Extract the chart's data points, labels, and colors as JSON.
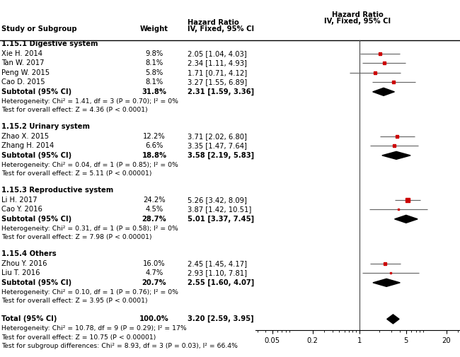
{
  "sections": [
    {
      "header": "1.15.1 Digestive system",
      "studies": [
        {
          "name": "Xie H. 2014",
          "weight": "9.8%",
          "hr": 2.05,
          "lo": 1.04,
          "hi": 4.03,
          "label": "2.05 [1.04, 4.03]"
        },
        {
          "name": "Tan W. 2017",
          "weight": "8.1%",
          "hr": 2.34,
          "lo": 1.11,
          "hi": 4.93,
          "label": "2.34 [1.11, 4.93]"
        },
        {
          "name": "Peng W. 2015",
          "weight": "5.8%",
          "hr": 1.71,
          "lo": 0.71,
          "hi": 4.12,
          "label": "1.71 [0.71, 4.12]"
        },
        {
          "name": "Cao D. 2015",
          "weight": "8.1%",
          "hr": 3.27,
          "lo": 1.55,
          "hi": 6.89,
          "label": "3.27 [1.55, 6.89]"
        }
      ],
      "subtotal": {
        "weight": "31.8%",
        "hr": 2.31,
        "lo": 1.59,
        "hi": 3.36,
        "label": "2.31 [1.59, 3.36]"
      },
      "het_text": "Heterogeneity: Chi² = 1.41, df = 3 (P = 0.70); I² = 0%",
      "test_text": "Test for overall effect: Z = 4.36 (P < 0.0001)"
    },
    {
      "header": "1.15.2 Urinary system",
      "studies": [
        {
          "name": "Zhao X. 2015",
          "weight": "12.2%",
          "hr": 3.71,
          "lo": 2.02,
          "hi": 6.8,
          "label": "3.71 [2.02, 6.80]"
        },
        {
          "name": "Zhang H. 2014",
          "weight": "6.6%",
          "hr": 3.35,
          "lo": 1.47,
          "hi": 7.64,
          "label": "3.35 [1.47, 7.64]"
        }
      ],
      "subtotal": {
        "weight": "18.8%",
        "hr": 3.58,
        "lo": 2.19,
        "hi": 5.83,
        "label": "3.58 [2.19, 5.83]"
      },
      "het_text": "Heterogeneity: Chi² = 0.04, df = 1 (P = 0.85); I² = 0%",
      "test_text": "Test for overall effect: Z = 5.11 (P < 0.00001)"
    },
    {
      "header": "1.15.3 Reproductive system",
      "studies": [
        {
          "name": "Li H. 2017",
          "weight": "24.2%",
          "hr": 5.26,
          "lo": 3.42,
          "hi": 8.09,
          "label": "5.26 [3.42, 8.09]"
        },
        {
          "name": "Cao Y. 2016",
          "weight": "4.5%",
          "hr": 3.87,
          "lo": 1.42,
          "hi": 10.51,
          "label": "3.87 [1.42, 10.51]"
        }
      ],
      "subtotal": {
        "weight": "28.7%",
        "hr": 5.01,
        "lo": 3.37,
        "hi": 7.45,
        "label": "5.01 [3.37, 7.45]"
      },
      "het_text": "Heterogeneity: Chi² = 0.31, df = 1 (P = 0.58); I² = 0%",
      "test_text": "Test for overall effect: Z = 7.98 (P < 0.00001)"
    },
    {
      "header": "1.15.4 Others",
      "studies": [
        {
          "name": "Zhou Y. 2016",
          "weight": "16.0%",
          "hr": 2.45,
          "lo": 1.45,
          "hi": 4.17,
          "label": "2.45 [1.45, 4.17]"
        },
        {
          "name": "Liu T. 2016",
          "weight": "4.7%",
          "hr": 2.93,
          "lo": 1.1,
          "hi": 7.81,
          "label": "2.93 [1.10, 7.81]"
        }
      ],
      "subtotal": {
        "weight": "20.7%",
        "hr": 2.55,
        "lo": 1.6,
        "hi": 4.07,
        "label": "2.55 [1.60, 4.07]"
      },
      "het_text": "Heterogeneity: Chi² = 0.10, df = 1 (P = 0.76); I² = 0%",
      "test_text": "Test for overall effect: Z = 3.95 (P < 0.0001)"
    }
  ],
  "total": {
    "weight": "100.0%",
    "hr": 3.2,
    "lo": 2.59,
    "hi": 3.95,
    "label": "3.20 [2.59, 3.95]"
  },
  "total_het": "Heterogeneity: Chi² = 10.78, df = 9 (P = 0.29); I² = 17%",
  "total_test": "Test for overall effect: Z = 10.75 (P < 0.00001)",
  "subgroup_test": "Test for subgroup differences: Chi² = 8.93, df = 3 (P = 0.03), I² = 66.4%",
  "xticks": [
    0.05,
    0.2,
    1,
    5,
    20
  ],
  "xlim": [
    0.028,
    32
  ],
  "square_color": "#cc0000",
  "diamond_color": "black",
  "line_color": "#666666",
  "font_size": 7.2,
  "font_family": "DejaVu Sans"
}
